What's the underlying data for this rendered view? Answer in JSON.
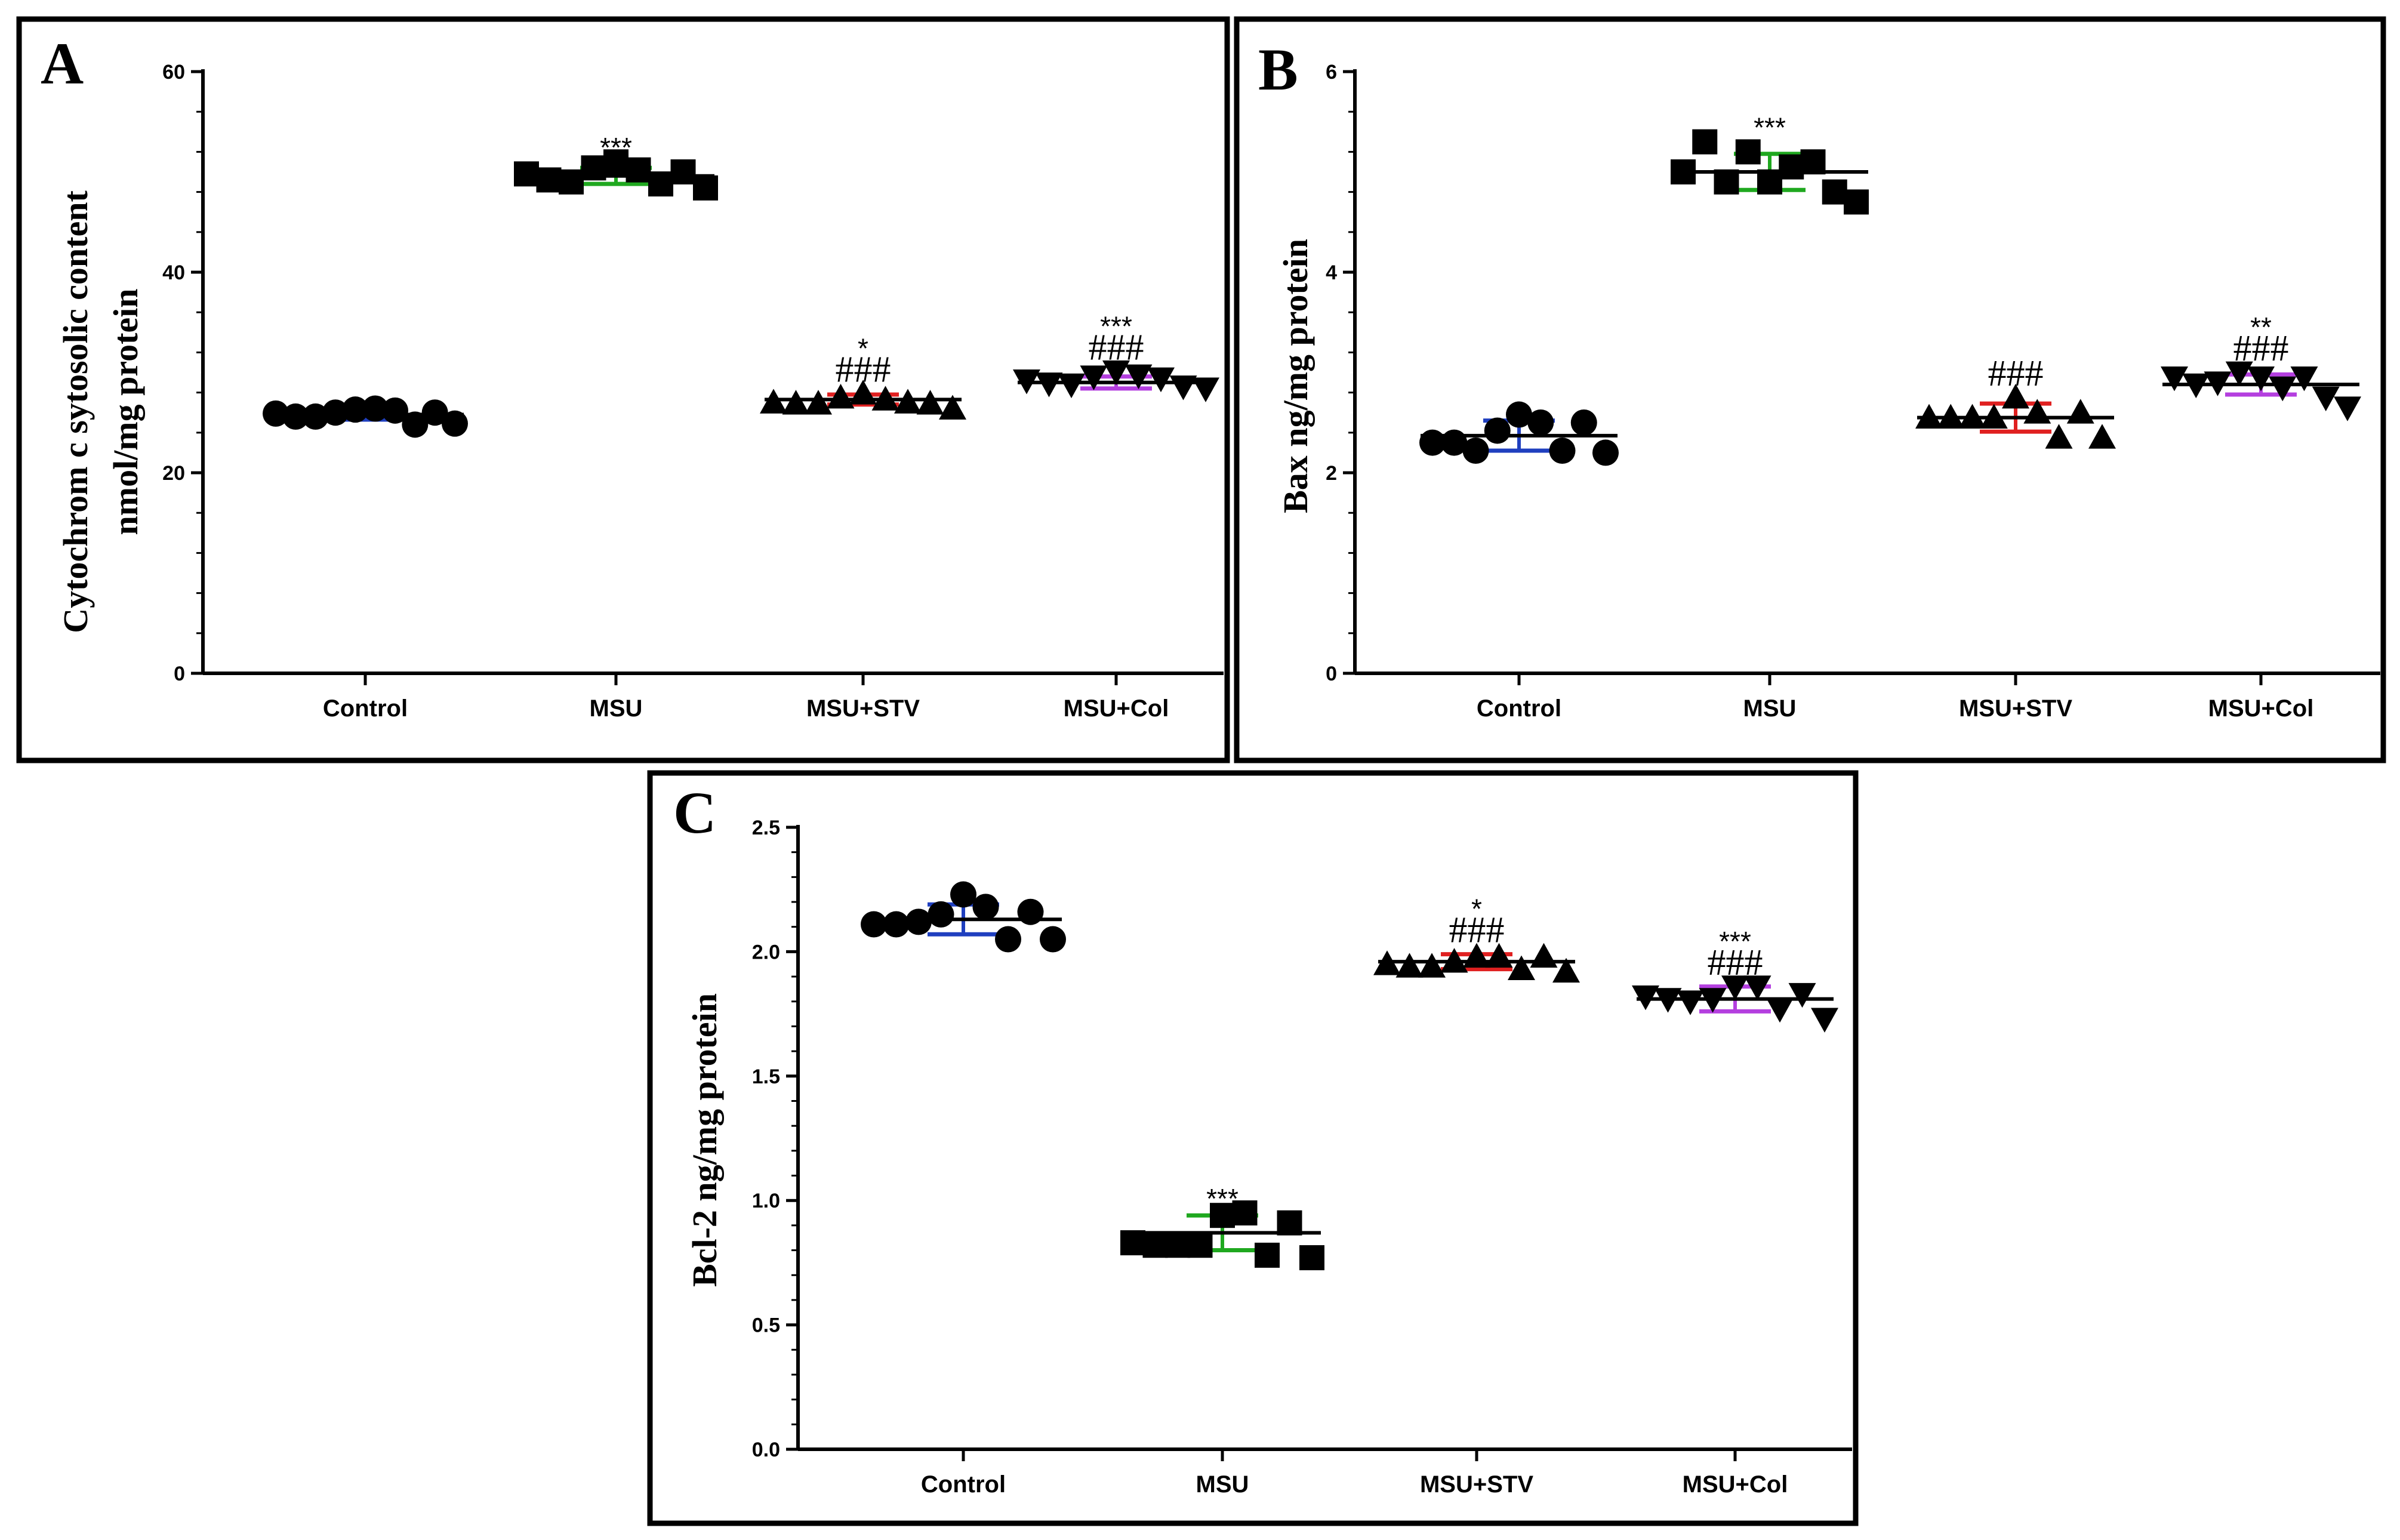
{
  "figure": {
    "type": "multi-panel scatter dot plot with mean ± SD"
  },
  "chart_data": [
    {
      "panel_label": "A",
      "type": "scatter",
      "ylabel_lines": [
        "Cytochrom c sytosolic content",
        "nmol/mg protein"
      ],
      "ylim": [
        0,
        60
      ],
      "yticks": [
        "0",
        "20",
        "40",
        "60"
      ],
      "categories": [
        "Control",
        "MSU",
        "MSU+STV",
        "MSU+Col"
      ],
      "groups": [
        {
          "name": "Control",
          "marker": "circle",
          "color": "#1f3fbf",
          "mean": 25.8,
          "sd": 0.5,
          "values": [
            25.9,
            25.6,
            25.6,
            26.0,
            26.3,
            26.4,
            26.2,
            24.8,
            26.0,
            24.9
          ],
          "sig_lines": []
        },
        {
          "name": "MSU",
          "marker": "square",
          "color": "#1fa81f",
          "mean": 49.6,
          "sd": 0.8,
          "values": [
            49.8,
            49.2,
            49.0,
            50.4,
            51.0,
            50.2,
            48.8,
            50.0,
            48.4
          ],
          "sig_lines": [
            "***"
          ]
        },
        {
          "name": "MSU+STV",
          "marker": "triangle-up",
          "color": "#e02020",
          "mean": 27.3,
          "sd": 0.5,
          "values": [
            27.0,
            26.9,
            26.9,
            27.5,
            27.9,
            27.3,
            27.0,
            26.9,
            26.4
          ],
          "sig_lines": [
            "*",
            "###"
          ]
        },
        {
          "name": "MSU+Col",
          "marker": "triangle-down",
          "color": "#b43fdf",
          "mean": 29.0,
          "sd": 0.6,
          "values": [
            29.2,
            28.9,
            28.8,
            29.6,
            30.1,
            29.7,
            29.4,
            28.6,
            28.4
          ],
          "sig_lines": [
            "***",
            "###"
          ]
        }
      ]
    },
    {
      "panel_label": "B",
      "type": "scatter",
      "ylabel_lines": [
        "Bax ng/mg protein"
      ],
      "ylim": [
        0,
        6
      ],
      "yticks": [
        "0",
        "2",
        "4",
        "6"
      ],
      "categories": [
        "Control",
        "MSU",
        "MSU+STV",
        "MSU+Col"
      ],
      "groups": [
        {
          "name": "Control",
          "marker": "circle",
          "color": "#1f3fbf",
          "mean": 2.37,
          "sd": 0.15,
          "values": [
            2.3,
            2.3,
            2.22,
            2.42,
            2.58,
            2.5,
            2.22,
            2.5,
            2.2
          ],
          "sig_lines": []
        },
        {
          "name": "MSU",
          "marker": "square",
          "color": "#1fa81f",
          "mean": 5.0,
          "sd": 0.18,
          "values": [
            5.0,
            5.3,
            4.9,
            5.2,
            4.9,
            5.05,
            5.1,
            4.8,
            4.7
          ],
          "sig_lines": [
            "***"
          ]
        },
        {
          "name": "MSU+STV",
          "marker": "triangle-up",
          "color": "#e02020",
          "mean": 2.55,
          "sd": 0.14,
          "values": [
            2.55,
            2.55,
            2.55,
            2.55,
            2.75,
            2.6,
            2.35,
            2.6,
            2.35
          ],
          "sig_lines": [
            "###"
          ]
        },
        {
          "name": "MSU+Col",
          "marker": "triangle-down",
          "color": "#b43fdf",
          "mean": 2.88,
          "sd": 0.1,
          "values": [
            2.95,
            2.88,
            2.9,
            3.0,
            2.95,
            2.85,
            2.95,
            2.75,
            2.65
          ],
          "sig_lines": [
            "**",
            "###"
          ]
        }
      ]
    },
    {
      "panel_label": "C",
      "type": "scatter",
      "ylabel_lines": [
        "Bcl-2 ng/mg protein"
      ],
      "ylim": [
        0,
        2.5
      ],
      "yticks": [
        "0.0",
        "0.5",
        "1.0",
        "1.5",
        "2.0",
        "2.5"
      ],
      "categories": [
        "Control",
        "MSU",
        "MSU+STV",
        "MSU+Col"
      ],
      "groups": [
        {
          "name": "Control",
          "marker": "circle",
          "color": "#1f3fbf",
          "mean": 2.13,
          "sd": 0.06,
          "values": [
            2.11,
            2.11,
            2.12,
            2.15,
            2.23,
            2.18,
            2.05,
            2.16,
            2.05
          ],
          "sig_lines": []
        },
        {
          "name": "MSU",
          "marker": "square",
          "color": "#1fa81f",
          "mean": 0.87,
          "sd": 0.07,
          "values": [
            0.83,
            0.82,
            0.82,
            0.82,
            0.94,
            0.95,
            0.78,
            0.91,
            0.77
          ],
          "sig_lines": [
            "***"
          ]
        },
        {
          "name": "MSU+STV",
          "marker": "triangle-up",
          "color": "#e02020",
          "mean": 1.96,
          "sd": 0.03,
          "values": [
            1.95,
            1.94,
            1.94,
            1.96,
            1.98,
            1.98,
            1.93,
            1.98,
            1.92
          ],
          "sig_lines": [
            "*",
            "###"
          ]
        },
        {
          "name": "MSU+Col",
          "marker": "triangle-down",
          "color": "#b43fdf",
          "mean": 1.81,
          "sd": 0.05,
          "values": [
            1.82,
            1.81,
            1.8,
            1.81,
            1.86,
            1.86,
            1.77,
            1.83,
            1.73
          ],
          "sig_lines": [
            "***",
            "###"
          ]
        }
      ]
    }
  ]
}
